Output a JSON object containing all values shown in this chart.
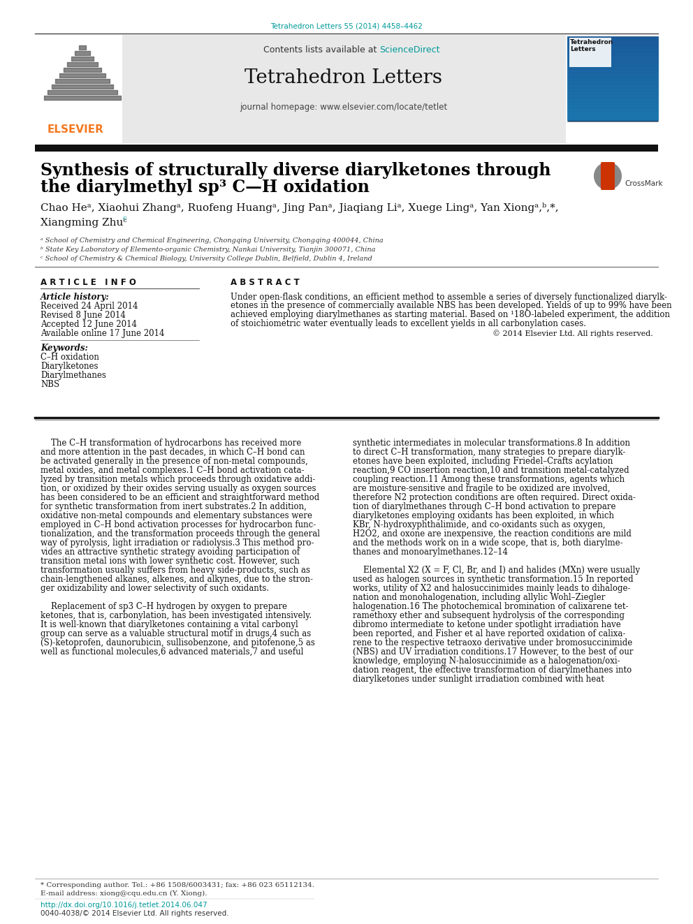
{
  "page_bg": "#ffffff",
  "top_journal_ref": "Tetrahedron Letters 55 (2014) 4458–4462",
  "top_journal_ref_color": "#009999",
  "header_bg": "#e8e8e8",
  "header_sciencedirect_color": "#009999",
  "journal_name": "Tetrahedron Letters",
  "journal_homepage": "journal homepage: www.elsevier.com/locate/tetlet",
  "elsevier_color": "#f47920",
  "dark_bar_color": "#111111",
  "title_line1": "Synthesis of structurally diverse diarylketones through",
  "title_line2": "the diarylmethyl sp³ C—H oxidation",
  "author_line1": "Chao Heᵃ, Xiaohui Zhangᵃ, Ruofeng Huangᵃ, Jing Panᵃ, Jiaqiang Liᵃ, Xuege Lingᵃ, Yan Xiongᵃ,ᵇ,*,",
  "author_line2": "Xiangming Zhuᶜ",
  "affil1": "ᵃ School of Chemistry and Chemical Engineering, Chongqing University, Chongqing 400044, China",
  "affil2": "ᵇ State Key Laboratory of Elemento-organic Chemistry, Nankai University, Tianjin 300071, China",
  "affil3": "ᶜ School of Chemistry & Chemical Biology, University College Dublin, Belfield, Dublin 4, Ireland",
  "article_info_header": "A R T I C L E   I N F O",
  "abstract_header": "A B S T R A C T",
  "article_history_label": "Article history:",
  "received": "Received 24 April 2014",
  "revised": "Revised 8 June 2014",
  "accepted": "Accepted 12 June 2014",
  "available": "Available online 17 June 2014",
  "keywords_label": "Keywords:",
  "keywords": [
    "C–H oxidation",
    "Diarylketones",
    "Diarylmethanes",
    "NBS"
  ],
  "abstract_lines": [
    "Under open-flask conditions, an efficient method to assemble a series of diversely functionalized diarylk-",
    "etones in the presence of commercially available NBS has been developed. Yields of up to 99% have been",
    "achieved employing diarylmethanes as starting material. Based on ¹18O-labeled experiment, the addition",
    "of stoichiometric water eventually leads to excellent yields in all carbonylation cases."
  ],
  "copyright": "© 2014 Elsevier Ltd. All rights reserved.",
  "body_col1": [
    "    The C–H transformation of hydrocarbons has received more",
    "and more attention in the past decades, in which C–H bond can",
    "be activated generally in the presence of non-metal compounds,",
    "metal oxides, and metal complexes.1 C–H bond activation cata-",
    "lyzed by transition metals which proceeds through oxidative addi-",
    "tion, or oxidized by their oxides serving usually as oxygen sources",
    "has been considered to be an efficient and straightforward method",
    "for synthetic transformation from inert substrates.2 In addition,",
    "oxidative non-metal compounds and elementary substances were",
    "employed in C–H bond activation processes for hydrocarbon func-",
    "tionalization, and the transformation proceeds through the general",
    "way of pyrolysis, light irradiation or radiolysis.3 This method pro-",
    "vides an attractive synthetic strategy avoiding participation of",
    "transition metal ions with lower synthetic cost. However, such",
    "transformation usually suffers from heavy side-products, such as",
    "chain-lengthened alkanes, alkenes, and alkynes, due to the stron-",
    "ger oxidizability and lower selectivity of such oxidants.",
    "",
    "    Replacement of sp3 C–H hydrogen by oxygen to prepare",
    "ketones, that is, carbonylation, has been investigated intensively.",
    "It is well-known that diarylketones containing a vital carbonyl",
    "group can serve as a valuable structural motif in drugs,4 such as",
    "(S)-ketoprofen, daunorubicin, sullisobenzone, and pitofenone,5 as",
    "well as functional molecules,6 advanced materials,7 and useful"
  ],
  "body_col2": [
    "synthetic intermediates in molecular transformations.8 In addition",
    "to direct C–H transformation, many strategies to prepare diarylk-",
    "etones have been exploited, including Friedel–Crafts acylation",
    "reaction,9 CO insertion reaction,10 and transition metal-catalyzed",
    "coupling reaction.11 Among these transformations, agents which",
    "are moisture-sensitive and fragile to be oxidized are involved,",
    "therefore N2 protection conditions are often required. Direct oxida-",
    "tion of diarylmethanes through C–H bond activation to prepare",
    "diarylketones employing oxidants has been exploited, in which",
    "KBr, N-hydroxyphthalimide, and co-oxidants such as oxygen,",
    "H2O2, and oxone are inexpensive, the reaction conditions are mild",
    "and the methods work on in a wide scope, that is, both diarylme-",
    "thanes and monoarylmethanes.12–14",
    "",
    "    Elemental X2 (X = F, Cl, Br, and I) and halides (MXn) were usually",
    "used as halogen sources in synthetic transformation.15 In reported",
    "works, utility of X2 and halosuccinimides mainly leads to dihaloge-",
    "nation and monohalogenation, including allylic Wohl–Ziegler",
    "halogenation.16 The photochemical bromination of calixarene tet-",
    "ramethoxy ether and subsequent hydrolysis of the corresponding",
    "dibromo intermediate to ketone under spotlight irradiation have",
    "been reported, and Fisher et al have reported oxidation of calixa-",
    "rene to the respective tetraoxo derivative under bromosuccinimide",
    "(NBS) and UV irradiation conditions.17 However, to the best of our",
    "knowledge, employing N-halosuccinimide as a halogenation/oxi-",
    "dation reagent, the effective transformation of diarylmethanes into",
    "diarylketones under sunlight irradiation combined with heat"
  ],
  "footer_star": "* Corresponding author. Tel.: +86 1508/6003431; fax: +86 023 65112134.",
  "footer_email": "E-mail address: xiong@cqu.edu.cn (Y. Xiong).",
  "footer_doi": "http://dx.doi.org/10.1016/j.tetlet.2014.06.047",
  "footer_issn": "0040-4038/© 2014 Elsevier Ltd. All rights reserved."
}
